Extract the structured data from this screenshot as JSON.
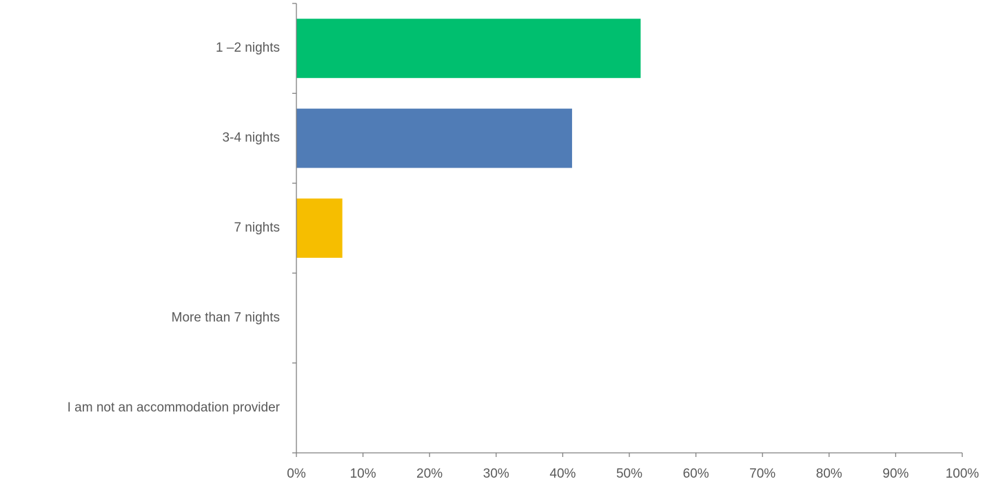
{
  "chart_data": {
    "type": "bar",
    "orientation": "horizontal",
    "title": "",
    "xlabel": "",
    "ylabel": "",
    "categories": [
      "1 –2 nights",
      "3-4 nights",
      "7 nights",
      "More than 7 nights",
      "I am not an accommodation provider"
    ],
    "values": [
      51.7,
      41.4,
      6.9,
      0,
      0
    ],
    "bar_colors": [
      "#00bf6f",
      "#507cb6",
      "#f6be00",
      "#dedede",
      "#dedede"
    ],
    "xlim": [
      0,
      100
    ],
    "x_ticks": [
      "0%",
      "10%",
      "20%",
      "30%",
      "40%",
      "50%",
      "60%",
      "70%",
      "80%",
      "90%",
      "100%"
    ],
    "grid": false,
    "legend": "none"
  }
}
